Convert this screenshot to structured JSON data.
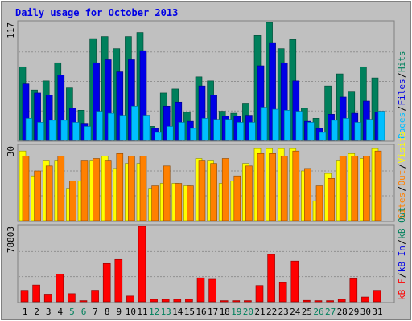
{
  "chart_data": [
    {
      "type": "bar",
      "panel": "hits-files-pages",
      "title": "Daily usage for October 2013",
      "ymax_label": "117",
      "ylim": [
        0,
        117
      ],
      "legend_words": [
        "Pages",
        "Files",
        "Hits"
      ],
      "categories": [
        "1",
        "2",
        "3",
        "4",
        "5",
        "6",
        "7",
        "8",
        "9",
        "10",
        "11",
        "12",
        "13",
        "14",
        "15",
        "16",
        "17",
        "18",
        "19",
        "20",
        "21",
        "22",
        "23",
        "24",
        "25",
        "26",
        "27",
        "28",
        "29",
        "30",
        "31"
      ],
      "weekend_days": [
        "5",
        "6",
        "12",
        "13",
        "19",
        "20",
        "26",
        "27"
      ],
      "series": [
        {
          "name": "Hits",
          "color": "#00805c",
          "values": [
            73,
            50,
            59,
            77,
            52,
            30,
            101,
            103,
            91,
            103,
            107,
            14,
            47,
            51,
            28,
            63,
            59,
            29,
            27,
            37,
            104,
            117,
            91,
            100,
            32,
            22,
            54,
            66,
            48,
            73,
            62
          ]
        },
        {
          "name": "Files",
          "color": "#0000e6",
          "values": [
            56,
            47,
            45,
            65,
            32,
            17,
            77,
            80,
            68,
            80,
            89,
            12,
            34,
            38,
            19,
            54,
            45,
            24,
            24,
            25,
            74,
            97,
            77,
            59,
            19,
            12,
            26,
            43,
            27,
            39,
            28
          ]
        },
        {
          "name": "Pages",
          "color": "#00bfff",
          "values": [
            22,
            18,
            20,
            20,
            18,
            14,
            29,
            27,
            25,
            34,
            25,
            8,
            14,
            18,
            12,
            22,
            21,
            21,
            18,
            18,
            33,
            31,
            30,
            29,
            18,
            8,
            20,
            22,
            18,
            21,
            29
          ]
        }
      ]
    },
    {
      "type": "bar",
      "panel": "visits-sites",
      "ymax_label": "30",
      "ylim": [
        0,
        30
      ],
      "legend_words": [
        "Sites",
        "Out",
        "Visits"
      ],
      "series": [
        {
          "name": "Visits",
          "color": "#ffff00",
          "values": [
            28,
            18,
            24,
            24,
            13,
            16,
            24,
            26,
            21,
            23,
            23,
            13,
            15,
            15,
            14,
            25,
            24,
            15,
            16,
            23,
            29,
            29,
            29,
            29,
            20,
            8,
            19,
            24,
            27,
            25,
            29
          ]
        },
        {
          "name": "Sites",
          "color": "#ff8000",
          "values": [
            26,
            20,
            22,
            26,
            16,
            24,
            25,
            24,
            27,
            26,
            26,
            14,
            22,
            15,
            14,
            24,
            23,
            25,
            18,
            22,
            27,
            27,
            26,
            28,
            21,
            14,
            17,
            26,
            26,
            26,
            28
          ]
        }
      ]
    },
    {
      "type": "bar",
      "panel": "kbytes",
      "ymax_label": "78803",
      "ylim": [
        0,
        78803
      ],
      "legend_words": [
        "kB F",
        "kB In",
        "kB Out"
      ],
      "series": [
        {
          "name": "kB F",
          "color": "#ff0000",
          "values": [
            12000,
            17500,
            8000,
            29000,
            8500,
            1200,
            12100,
            40000,
            44200,
            6000,
            78803,
            2500,
            2500,
            2500,
            2500,
            25000,
            23500,
            1200,
            1200,
            1200,
            17000,
            49500,
            20000,
            42600,
            1500,
            1200,
            1200,
            2500,
            24000,
            5000,
            12000
          ]
        }
      ]
    }
  ],
  "colors": {
    "plot_bg": "#c0c0c0",
    "grid": "#808080",
    "title": "#0000e6",
    "weekday_label": "#000000",
    "weekend_label": "#00805c"
  }
}
